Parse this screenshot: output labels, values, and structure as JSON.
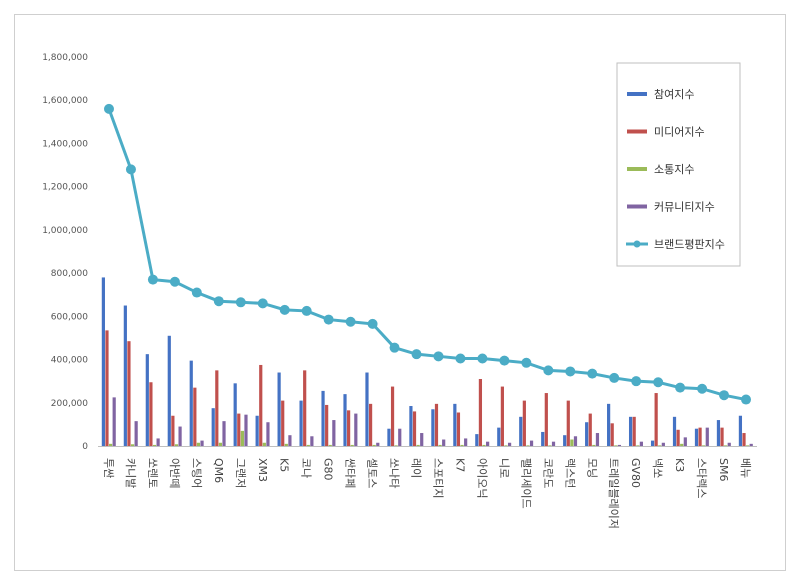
{
  "chart_data": {
    "type": "bar",
    "ylim": [
      0,
      1800000
    ],
    "yticks": [
      "0",
      "200,000",
      "400,000",
      "600,000",
      "800,000",
      "1,000,000",
      "1,200,000",
      "1,400,000",
      "1,600,000",
      "1,800,000"
    ],
    "grid": false,
    "legend_position": "right",
    "categories": [
      "투싼",
      "카니발",
      "쏘렌토",
      "아반떼",
      "스팅어",
      "QM6",
      "그랜저",
      "XM3",
      "K5",
      "코나",
      "G80",
      "싼타페",
      "셀토스",
      "쏘나타",
      "레이",
      "스포티지",
      "K7",
      "아이오닉",
      "니로",
      "팰리세이드",
      "코란도",
      "렉스턴",
      "모닝",
      "트레일블레이저",
      "GV80",
      "넥쏘",
      "K3",
      "스타렉스",
      "SM6",
      "베뉴"
    ],
    "series": [
      {
        "name": "참여지수",
        "color": "#4472c4",
        "type": "bar",
        "values": [
          780000,
          650000,
          425000,
          510000,
          395000,
          175000,
          290000,
          140000,
          340000,
          210000,
          255000,
          240000,
          340000,
          80000,
          185000,
          170000,
          195000,
          55000,
          85000,
          135000,
          65000,
          50000,
          110000,
          195000,
          135000,
          25000,
          135000,
          80000,
          120000,
          140000
        ]
      },
      {
        "name": "미디어지수",
        "color": "#c0504d",
        "type": "bar",
        "values": [
          535000,
          485000,
          295000,
          140000,
          270000,
          350000,
          150000,
          375000,
          210000,
          350000,
          190000,
          165000,
          195000,
          275000,
          160000,
          195000,
          155000,
          310000,
          275000,
          210000,
          245000,
          210000,
          150000,
          105000,
          135000,
          245000,
          75000,
          85000,
          85000,
          60000
        ]
      },
      {
        "name": "소통지수",
        "color": "#9bbb59",
        "type": "bar",
        "values": [
          10000,
          8000,
          5000,
          8000,
          15000,
          15000,
          70000,
          15000,
          10000,
          5000,
          5000,
          5000,
          5000,
          3000,
          5000,
          5000,
          5000,
          5000,
          3000,
          3000,
          3000,
          30000,
          5000,
          3000,
          3000,
          3000,
          10000,
          3000,
          3000,
          3000
        ]
      },
      {
        "name": "커뮤니티지수",
        "color": "#8064a2",
        "type": "bar",
        "values": [
          225000,
          115000,
          35000,
          90000,
          25000,
          115000,
          145000,
          110000,
          50000,
          45000,
          120000,
          150000,
          15000,
          80000,
          60000,
          30000,
          35000,
          20000,
          15000,
          25000,
          20000,
          45000,
          60000,
          5000,
          20000,
          15000,
          40000,
          85000,
          15000,
          10000
        ]
      },
      {
        "name": "브랜드평판지수",
        "color": "#4bacc6",
        "type": "line",
        "values": [
          1560000,
          1280000,
          770000,
          760000,
          710000,
          670000,
          665000,
          660000,
          630000,
          625000,
          585000,
          575000,
          565000,
          455000,
          425000,
          415000,
          405000,
          405000,
          395000,
          385000,
          350000,
          345000,
          335000,
          315000,
          300000,
          295000,
          270000,
          265000,
          235000,
          215000
        ]
      }
    ]
  }
}
